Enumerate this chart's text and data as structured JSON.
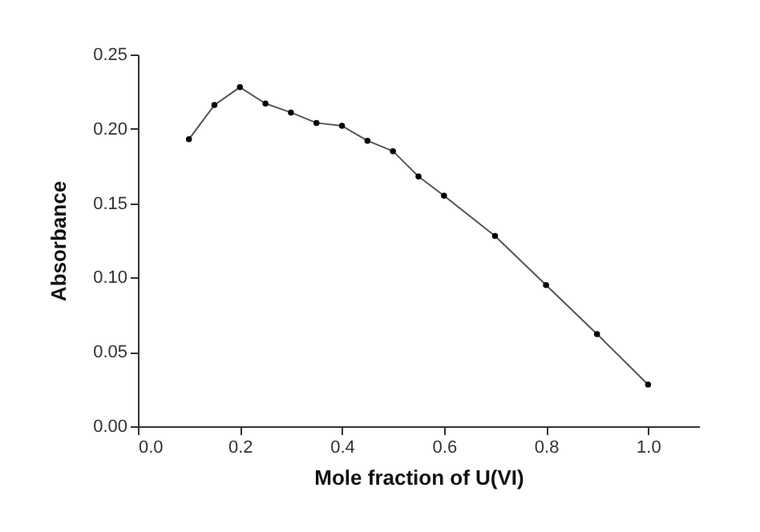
{
  "chart_data": {
    "type": "line",
    "xlabel": "Mole fraction of U(VI)",
    "ylabel": "Absorbance",
    "x": [
      0.1,
      0.15,
      0.2,
      0.25,
      0.3,
      0.35,
      0.4,
      0.45,
      0.5,
      0.55,
      0.6,
      0.7,
      0.8,
      0.9,
      1.0
    ],
    "series": [
      {
        "color": "#555555",
        "values": [
          0.193,
          0.216,
          0.228,
          0.217,
          0.211,
          0.204,
          0.202,
          0.192,
          0.185,
          0.168,
          0.155,
          0.128,
          0.095,
          0.062,
          0.028
        ]
      }
    ],
    "xlim": [
      0,
      1.1
    ],
    "xticks": [
      {
        "value": 0,
        "label": "0.0"
      },
      0.2,
      0.4,
      0.6,
      0.8,
      {
        "value": 1,
        "label": "1.0"
      }
    ],
    "ylim": [
      0,
      0.25
    ],
    "yticks": [
      {
        "value": 0,
        "label": "0.00"
      },
      {
        "value": 0.05,
        "label": "0.05"
      },
      {
        "value": 0.1,
        "label": "0.10"
      },
      {
        "value": 0.15,
        "label": "0.15"
      },
      {
        "value": 0.2,
        "label": "0.20"
      },
      {
        "value": 0.25,
        "label": "0.25"
      }
    ],
    "grid": false,
    "marker": "circle",
    "line_style": "solid"
  }
}
